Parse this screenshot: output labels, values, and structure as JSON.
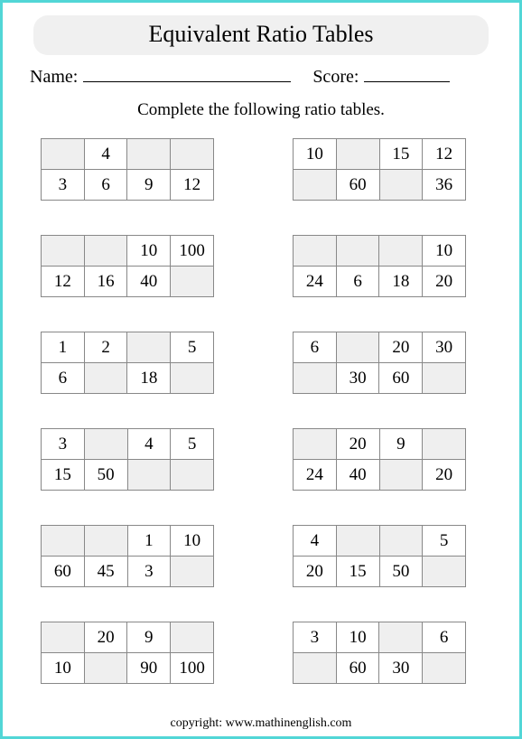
{
  "title": "Equivalent Ratio Tables",
  "name_label": "Name:",
  "score_label": "Score:",
  "instruction": "Complete the following ratio tables.",
  "copyright": "copyright:   www.mathinenglish.com",
  "tables": [
    {
      "rows": [
        [
          "",
          "4",
          "",
          ""
        ],
        [
          "3",
          "6",
          "9",
          "12"
        ]
      ]
    },
    {
      "rows": [
        [
          "10",
          "",
          "15",
          "12"
        ],
        [
          "",
          "60",
          "",
          "36"
        ]
      ]
    },
    {
      "rows": [
        [
          "",
          "",
          "10",
          "100"
        ],
        [
          "12",
          "16",
          "40",
          ""
        ]
      ]
    },
    {
      "rows": [
        [
          "",
          "",
          "",
          "10"
        ],
        [
          "24",
          "6",
          "18",
          "20"
        ]
      ]
    },
    {
      "rows": [
        [
          "1",
          "2",
          "",
          "5"
        ],
        [
          "6",
          "",
          "18",
          ""
        ]
      ]
    },
    {
      "rows": [
        [
          "6",
          "",
          "20",
          "30"
        ],
        [
          "",
          "30",
          "60",
          ""
        ]
      ]
    },
    {
      "rows": [
        [
          "3",
          "",
          "4",
          "5"
        ],
        [
          "15",
          "50",
          "",
          ""
        ]
      ]
    },
    {
      "rows": [
        [
          "",
          "20",
          "9",
          ""
        ],
        [
          "24",
          "40",
          "",
          "20"
        ]
      ]
    },
    {
      "rows": [
        [
          "",
          "",
          "1",
          "10"
        ],
        [
          "60",
          "45",
          "3",
          ""
        ]
      ]
    },
    {
      "rows": [
        [
          "4",
          "",
          "",
          "5"
        ],
        [
          "20",
          "15",
          "50",
          ""
        ]
      ]
    },
    {
      "rows": [
        [
          "",
          "20",
          "9",
          ""
        ],
        [
          "10",
          "",
          "90",
          "100"
        ]
      ]
    },
    {
      "rows": [
        [
          "3",
          "10",
          "",
          "6"
        ],
        [
          "",
          "60",
          "30",
          ""
        ]
      ]
    }
  ]
}
